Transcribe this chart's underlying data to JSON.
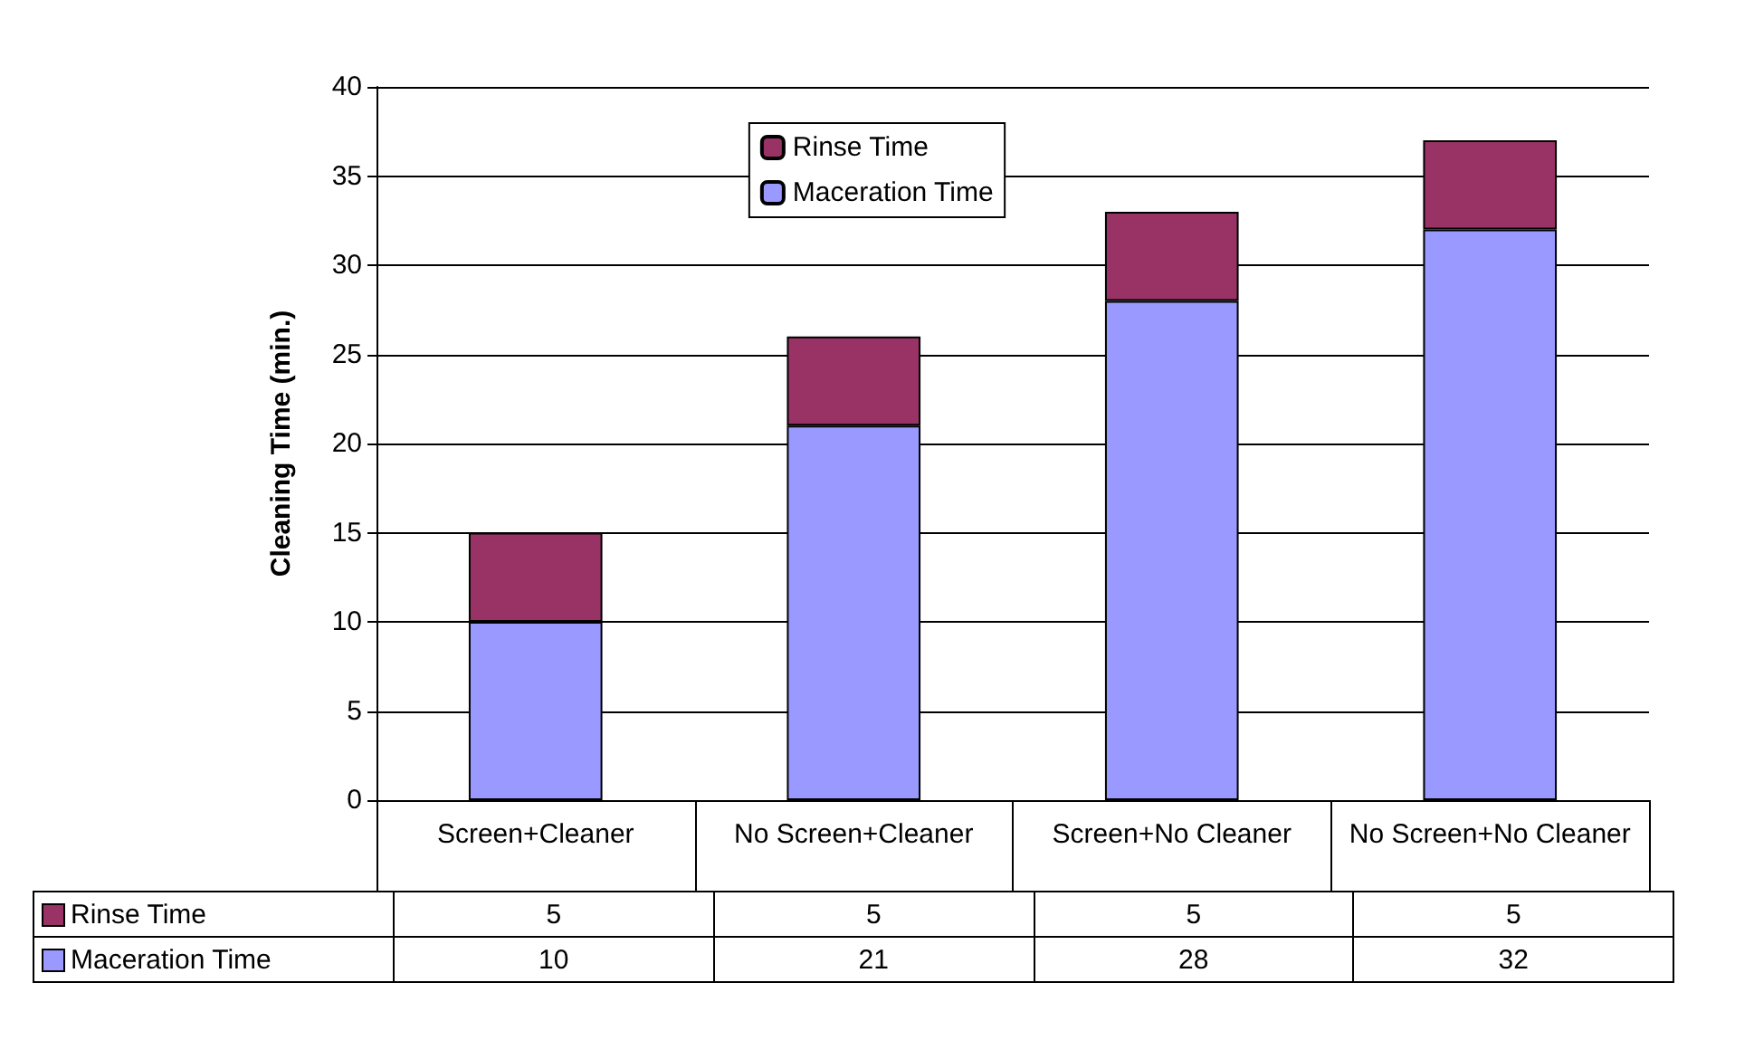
{
  "chart_data": {
    "type": "bar",
    "stacked": true,
    "ylabel": "Cleaning Time (min.)",
    "categories": [
      "Screen+Cleaner",
      "No Screen+Cleaner",
      "Screen+No Cleaner",
      "No Screen+No Cleaner"
    ],
    "series": [
      {
        "name": "Maceration Time",
        "color": "#9999ff",
        "values": [
          10,
          21,
          28,
          32
        ]
      },
      {
        "name": "Rinse Time",
        "color": "#993366",
        "values": [
          5,
          5,
          5,
          5
        ]
      }
    ],
    "ylim": [
      0,
      40
    ],
    "yticks": [
      0,
      5,
      10,
      15,
      20,
      25,
      30,
      35,
      40
    ],
    "grid": "y",
    "legend": "top",
    "data_labels": true
  }
}
